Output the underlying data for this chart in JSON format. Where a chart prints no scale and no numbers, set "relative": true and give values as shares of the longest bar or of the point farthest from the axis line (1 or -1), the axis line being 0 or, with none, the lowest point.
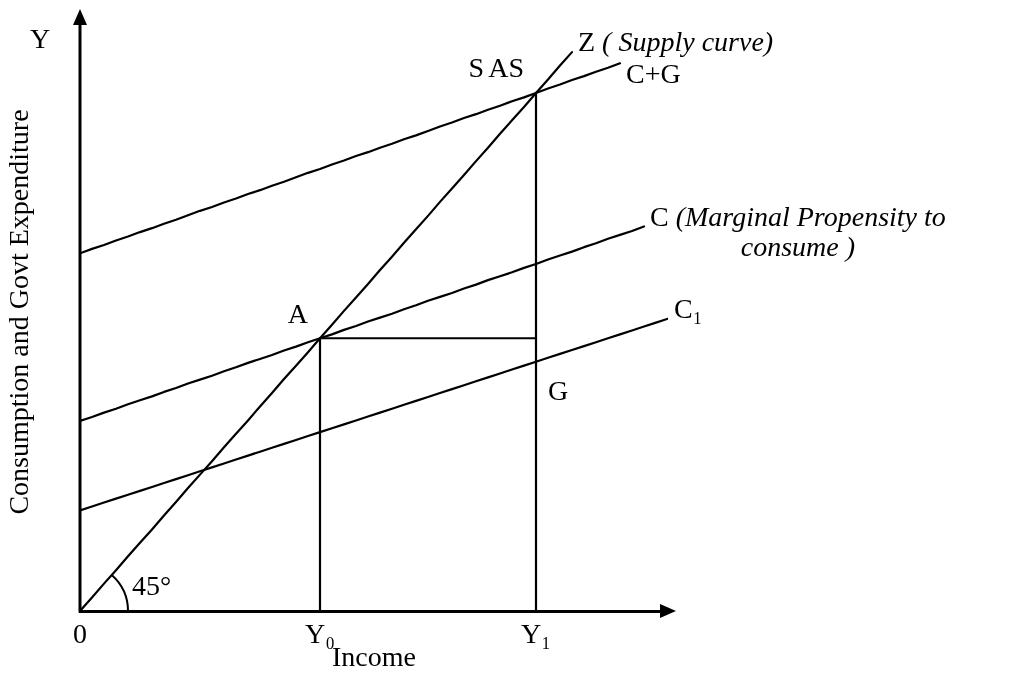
{
  "chart_data": {
    "type": "line",
    "relative": true,
    "xlabel": "Income",
    "ylabel": "Consumption and Govt Expenditure",
    "tick_labels": "x",
    "categories": [
      "0",
      null,
      null,
      null,
      null,
      null,
      null,
      null,
      null,
      null,
      null,
      null,
      null,
      null,
      null,
      null,
      null,
      null,
      null,
      null,
      "Y₀",
      null,
      null,
      null,
      null,
      null,
      null,
      null,
      null,
      null,
      null,
      null,
      null,
      null,
      null,
      null,
      null,
      null,
      "Y₁",
      null,
      null,
      null,
      null,
      null,
      null,
      null,
      null,
      null,
      null,
      null
    ],
    "series": [
      {
        "name": "Z ( Supply curve)",
        "color": "#000000",
        "values": [
          0,
          0.024,
          0.049,
          0.073,
          0.098,
          0.122,
          0.146,
          0.171,
          0.195,
          0.22,
          0.244,
          0.268,
          0.293,
          0.317,
          0.341,
          0.366,
          0.39,
          0.415,
          0.439,
          0.463,
          0.488,
          0.512,
          0.537,
          0.561,
          0.585,
          0.61,
          0.634,
          0.659,
          0.683,
          0.707,
          0.732,
          0.756,
          0.78,
          0.805,
          0.829,
          0.854,
          0.878,
          0.902,
          0.927,
          0.951,
          0.976,
          1,
          null,
          null,
          null,
          null,
          null,
          null,
          null,
          null
        ]
      },
      {
        "name": "C+G",
        "color": "#000000",
        "values": [
          0.64,
          0.648,
          0.655,
          0.663,
          0.67,
          0.678,
          0.685,
          0.693,
          0.7,
          0.708,
          0.716,
          0.723,
          0.731,
          0.738,
          0.746,
          0.753,
          0.761,
          0.768,
          0.776,
          0.784,
          0.791,
          0.799,
          0.806,
          0.814,
          0.821,
          0.829,
          0.836,
          0.844,
          0.851,
          0.859,
          0.867,
          0.874,
          0.882,
          0.889,
          0.897,
          0.904,
          0.912,
          0.919,
          0.927,
          0.935,
          0.942,
          0.95,
          0.957,
          0.965,
          0.972,
          0.98,
          null,
          null,
          null,
          null
        ]
      },
      {
        "name": "C (Marginal Propensity to consume )",
        "color": "#000000",
        "values": [
          0.34,
          0.347,
          0.355,
          0.362,
          0.37,
          0.377,
          0.384,
          0.392,
          0.399,
          0.407,
          0.414,
          0.421,
          0.429,
          0.436,
          0.444,
          0.451,
          0.458,
          0.466,
          0.473,
          0.481,
          0.488,
          0.495,
          0.503,
          0.51,
          0.518,
          0.525,
          0.532,
          0.54,
          0.547,
          0.555,
          0.562,
          0.569,
          0.577,
          0.584,
          0.592,
          0.599,
          0.606,
          0.614,
          0.621,
          0.629,
          0.636,
          0.643,
          0.651,
          0.658,
          0.666,
          0.673,
          0.68,
          0.688,
          null,
          null
        ]
      },
      {
        "name": "C₁",
        "color": "#000000",
        "values": [
          0.18,
          0.187,
          0.194,
          0.201,
          0.208,
          0.215,
          0.222,
          0.229,
          0.236,
          0.243,
          0.25,
          0.257,
          0.264,
          0.271,
          0.278,
          0.285,
          0.292,
          0.299,
          0.306,
          0.313,
          0.32,
          0.327,
          0.334,
          0.341,
          0.348,
          0.355,
          0.362,
          0.369,
          0.376,
          0.383,
          0.39,
          0.397,
          0.404,
          0.411,
          0.418,
          0.425,
          0.432,
          0.439,
          0.446,
          0.453,
          0.46,
          0.467,
          0.474,
          0.481,
          0.488,
          0.495,
          0.502,
          0.509,
          0.516,
          0.523
        ]
      },
      {
        "color": "#000000",
        "x": [
          "Y₀",
          "Y₀"
        ],
        "values": [
          0,
          0.488
        ]
      },
      {
        "color": "#000000",
        "values": [
          null,
          null,
          null,
          null,
          null,
          null,
          null,
          null,
          null,
          null,
          null,
          null,
          null,
          null,
          null,
          null,
          null,
          null,
          null,
          null,
          0.488,
          0.488,
          0.488,
          0.488,
          0.488,
          0.488,
          0.488,
          0.488,
          0.488,
          0.488,
          0.488,
          0.488,
          0.488,
          0.488,
          0.488,
          0.488,
          0.488,
          0.488,
          0.488,
          null,
          null,
          null,
          null,
          null,
          null,
          null,
          null,
          null,
          null,
          null
        ]
      },
      {
        "color": "#000000",
        "x": [
          "Y₁",
          "Y₁"
        ],
        "values": [
          0,
          0.927
        ]
      }
    ],
    "annotations": [
      "Y",
      {
        "text": "AS",
        "x": "Y₁",
        "y": 0.927
      },
      {
        "text": "S",
        "x": "Y₁",
        "y": 0.927
      },
      {
        "text": "A",
        "x": "Y₀",
        "y": 0.488
      },
      {
        "text": "G",
        "x": "Y₁",
        "y": 0.35
      },
      {
        "text": "45°",
        "x": "0",
        "y": 0
      }
    ]
  }
}
